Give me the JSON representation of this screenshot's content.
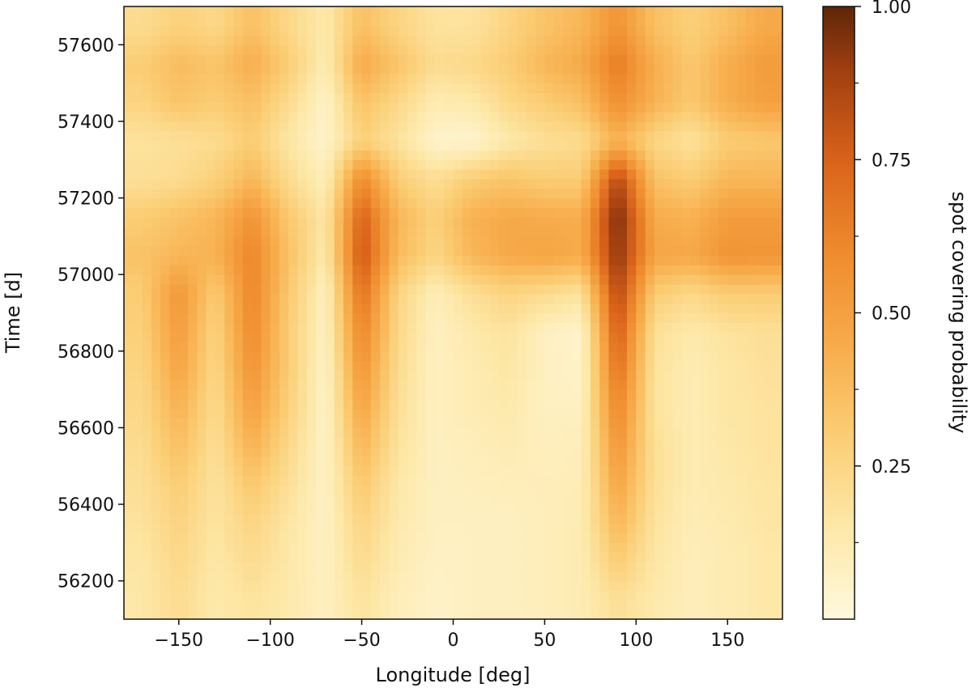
{
  "chart_data": {
    "type": "heatmap",
    "title": "",
    "xlabel": "Longitude [deg]",
    "ylabel": "Time [d]",
    "xlim": [
      -180,
      180
    ],
    "ylim": [
      56100,
      57700
    ],
    "x_ticks": [
      -150,
      -100,
      -50,
      0,
      50,
      100,
      150
    ],
    "x_tick_labels": [
      "−150",
      "−100",
      "−50",
      "0",
      "50",
      "100",
      "150"
    ],
    "y_ticks": [
      56200,
      56400,
      56600,
      56800,
      57000,
      57200,
      57400,
      57600
    ],
    "y_tick_labels": [
      "56200",
      "56400",
      "56600",
      "56800",
      "57000",
      "57200",
      "57400",
      "57600"
    ],
    "grid": false,
    "colorbar": {
      "label": "spot covering probability",
      "range": [
        0.0,
        1.0
      ],
      "ticks": [
        0.25,
        0.5,
        0.75,
        1.0
      ],
      "tick_labels": [
        "0.25",
        "0.50",
        "0.75",
        "1.00"
      ],
      "minor_ticks": [
        0.125,
        0.375,
        0.625,
        0.875
      ],
      "colormap_stops": [
        {
          "v": 0.0,
          "color": "#fff8dd"
        },
        {
          "v": 0.15,
          "color": "#fde8a8"
        },
        {
          "v": 0.3,
          "color": "#fbcd74"
        },
        {
          "v": 0.45,
          "color": "#f7ab4a"
        },
        {
          "v": 0.6,
          "color": "#ee8b2e"
        },
        {
          "v": 0.75,
          "color": "#d9621a"
        },
        {
          "v": 0.9,
          "color": "#9e3e10"
        },
        {
          "v": 1.0,
          "color": "#5e2608"
        }
      ]
    },
    "longitude_bins": [
      -170,
      -150,
      -130,
      -110,
      -90,
      -70,
      -50,
      -30,
      -10,
      10,
      30,
      50,
      70,
      90,
      110,
      130,
      150,
      170
    ],
    "time_bins": [
      56150,
      56250,
      56350,
      56450,
      56550,
      56650,
      56750,
      56850,
      56950,
      57050,
      57150,
      57250,
      57350,
      57450,
      57550,
      57650
    ],
    "values": [
      [
        0.15,
        0.22,
        0.14,
        0.18,
        0.14,
        0.08,
        0.18,
        0.1,
        0.06,
        0.08,
        0.08,
        0.1,
        0.12,
        0.2,
        0.14,
        0.1,
        0.12,
        0.15
      ],
      [
        0.16,
        0.24,
        0.15,
        0.22,
        0.15,
        0.08,
        0.22,
        0.12,
        0.07,
        0.08,
        0.08,
        0.1,
        0.12,
        0.3,
        0.16,
        0.1,
        0.12,
        0.15
      ],
      [
        0.18,
        0.27,
        0.17,
        0.26,
        0.16,
        0.07,
        0.26,
        0.14,
        0.08,
        0.08,
        0.08,
        0.1,
        0.12,
        0.4,
        0.18,
        0.11,
        0.13,
        0.16
      ],
      [
        0.2,
        0.3,
        0.18,
        0.32,
        0.2,
        0.07,
        0.32,
        0.15,
        0.08,
        0.09,
        0.1,
        0.1,
        0.11,
        0.48,
        0.2,
        0.12,
        0.14,
        0.17
      ],
      [
        0.22,
        0.36,
        0.2,
        0.42,
        0.24,
        0.06,
        0.4,
        0.18,
        0.08,
        0.1,
        0.12,
        0.09,
        0.1,
        0.55,
        0.2,
        0.12,
        0.15,
        0.18
      ],
      [
        0.24,
        0.42,
        0.22,
        0.5,
        0.28,
        0.06,
        0.48,
        0.2,
        0.08,
        0.12,
        0.14,
        0.08,
        0.08,
        0.62,
        0.18,
        0.12,
        0.16,
        0.18
      ],
      [
        0.26,
        0.48,
        0.24,
        0.56,
        0.3,
        0.06,
        0.55,
        0.22,
        0.08,
        0.12,
        0.16,
        0.08,
        0.06,
        0.7,
        0.18,
        0.12,
        0.16,
        0.19
      ],
      [
        0.28,
        0.52,
        0.26,
        0.6,
        0.3,
        0.07,
        0.62,
        0.24,
        0.08,
        0.14,
        0.18,
        0.08,
        0.05,
        0.78,
        0.2,
        0.14,
        0.18,
        0.2
      ],
      [
        0.3,
        0.55,
        0.3,
        0.62,
        0.32,
        0.08,
        0.7,
        0.26,
        0.1,
        0.2,
        0.26,
        0.22,
        0.18,
        0.86,
        0.3,
        0.24,
        0.3,
        0.3
      ],
      [
        0.35,
        0.4,
        0.42,
        0.62,
        0.35,
        0.14,
        0.8,
        0.38,
        0.25,
        0.4,
        0.46,
        0.48,
        0.45,
        0.94,
        0.48,
        0.46,
        0.56,
        0.55
      ],
      [
        0.3,
        0.35,
        0.4,
        0.56,
        0.32,
        0.16,
        0.76,
        0.4,
        0.28,
        0.42,
        0.46,
        0.45,
        0.44,
        0.98,
        0.45,
        0.42,
        0.52,
        0.52
      ],
      [
        0.2,
        0.22,
        0.28,
        0.4,
        0.22,
        0.1,
        0.6,
        0.3,
        0.2,
        0.3,
        0.34,
        0.3,
        0.3,
        0.86,
        0.35,
        0.3,
        0.4,
        0.4
      ],
      [
        0.18,
        0.2,
        0.22,
        0.3,
        0.16,
        0.05,
        0.28,
        0.18,
        0.05,
        0.04,
        0.14,
        0.2,
        0.22,
        0.42,
        0.25,
        0.18,
        0.3,
        0.32
      ],
      [
        0.26,
        0.34,
        0.3,
        0.36,
        0.22,
        0.06,
        0.35,
        0.24,
        0.12,
        0.14,
        0.24,
        0.3,
        0.36,
        0.58,
        0.42,
        0.32,
        0.44,
        0.5
      ],
      [
        0.3,
        0.38,
        0.34,
        0.44,
        0.3,
        0.12,
        0.46,
        0.34,
        0.22,
        0.24,
        0.3,
        0.4,
        0.46,
        0.66,
        0.44,
        0.32,
        0.44,
        0.52
      ],
      [
        0.22,
        0.28,
        0.24,
        0.36,
        0.24,
        0.14,
        0.36,
        0.26,
        0.18,
        0.18,
        0.26,
        0.34,
        0.4,
        0.56,
        0.36,
        0.28,
        0.36,
        0.46
      ]
    ]
  }
}
